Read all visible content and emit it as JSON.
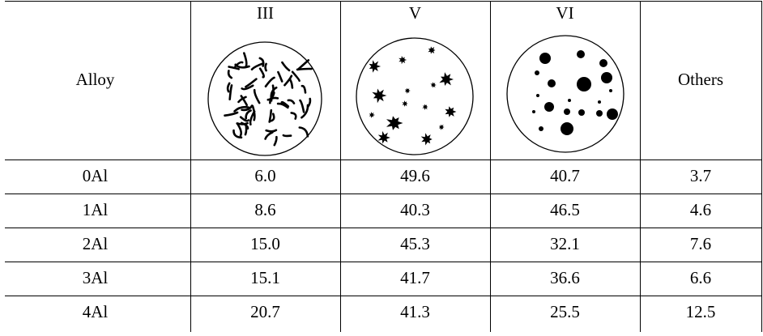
{
  "table": {
    "header": [
      "Alloy",
      "III",
      "V",
      "VI",
      "Others"
    ],
    "rows": [
      [
        "0Al",
        "6.0",
        "49.6",
        "40.7",
        "3.7"
      ],
      [
        "1Al",
        "8.6",
        "40.3",
        "46.5",
        "4.6"
      ],
      [
        "2Al",
        "15.0",
        "45.3",
        "32.1",
        "7.6"
      ],
      [
        "3Al",
        "15.1",
        "41.7",
        "36.6",
        "6.6"
      ],
      [
        "4Al",
        "20.7",
        "41.3",
        "25.5",
        "12.5"
      ]
    ]
  }
}
